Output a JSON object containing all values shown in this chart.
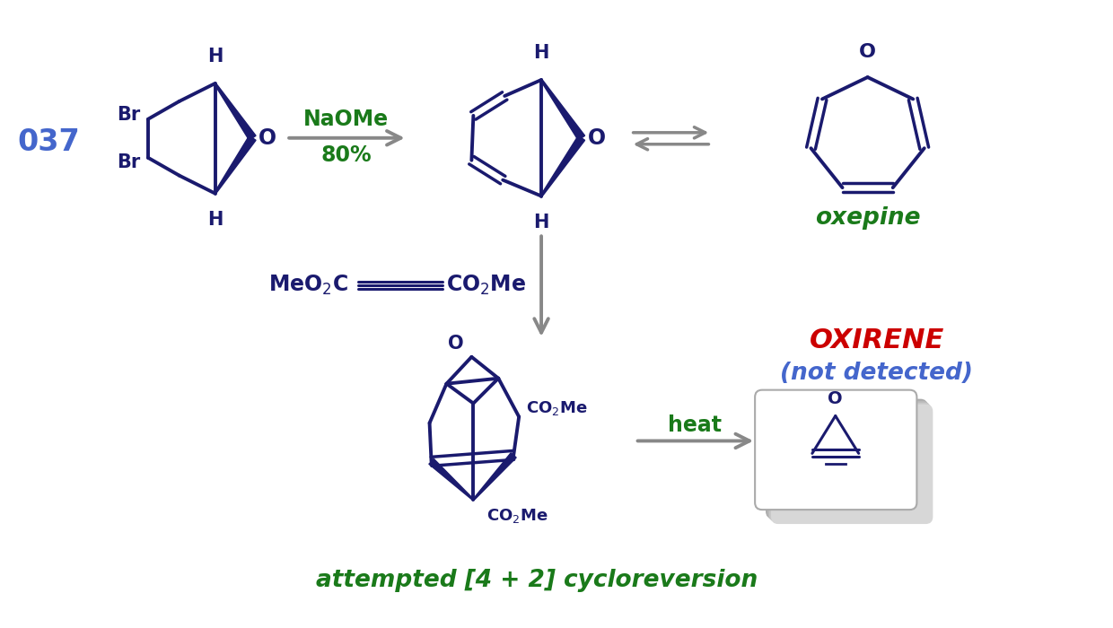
{
  "bg_color": "#ffffff",
  "dark_blue": "#1a1a6e",
  "green": "#1a7a1a",
  "red": "#cc0000",
  "blue_label": "#4466cc",
  "gray": "#888888",
  "label_037": "037",
  "naome_text": "NaOMe",
  "yield_text": "80%",
  "oxepine_text": "oxepine",
  "oxirene_text": "OXIRENE",
  "not_detected_text": "(not detected)",
  "heat_text": "heat",
  "cycloreversion_text": "attempted [4 + 2] cycloreversion"
}
